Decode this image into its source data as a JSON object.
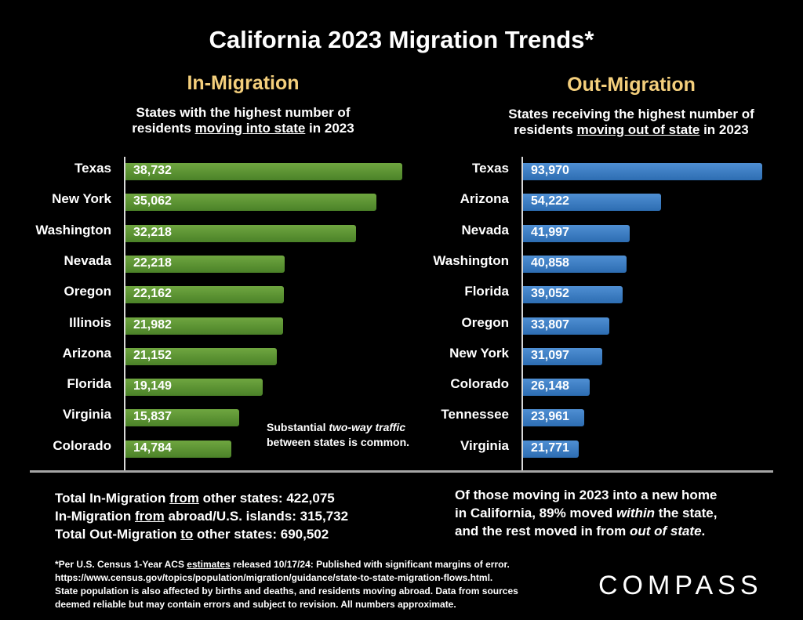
{
  "title": "California 2023 Migration Trends*",
  "in_panel": {
    "heading": "In-Migration",
    "subtitle_l1": "States with the highest number of",
    "subtitle_l2_pre": "residents ",
    "subtitle_l2_u": "moving into state",
    "subtitle_l2_post": " in 2023"
  },
  "out_panel": {
    "heading": "Out-Migration",
    "subtitle_l1": "States receiving the highest number of",
    "subtitle_l2_pre": "residents ",
    "subtitle_l2_u": "moving out of state",
    "subtitle_l2_post": " in 2023"
  },
  "chart_data": [
    {
      "type": "bar",
      "orientation": "horizontal",
      "title": "In-Migration",
      "color": "#5a9632",
      "xlim": [
        0,
        40000
      ],
      "categories": [
        "Texas",
        "New York",
        "Washington",
        "Nevada",
        "Oregon",
        "Illinois",
        "Arizona",
        "Florida",
        "Virginia",
        "Colorado"
      ],
      "values": [
        38732,
        35062,
        32218,
        22218,
        22162,
        21982,
        21152,
        19149,
        15837,
        14784
      ],
      "labels": [
        "38,732",
        "35,062",
        "32,218",
        "22,218",
        "22,162",
        "21,982",
        "21,152",
        "19,149",
        "15,837",
        "14,784"
      ]
    },
    {
      "type": "bar",
      "orientation": "horizontal",
      "title": "Out-Migration",
      "color": "#3a7cc4",
      "xlim": [
        0,
        95000
      ],
      "categories": [
        "Texas",
        "Arizona",
        "Nevada",
        "Washington",
        "Florida",
        "Oregon",
        "New York",
        "Colorado",
        "Tennessee",
        "Virginia"
      ],
      "values": [
        93970,
        54222,
        41997,
        40858,
        39052,
        33807,
        31097,
        26148,
        23961,
        21771
      ],
      "labels": [
        "93,970",
        "54,222",
        "41,997",
        "40,858",
        "39,052",
        "33,807",
        "31,097",
        "26,148",
        "23,961",
        "21,771"
      ]
    }
  ],
  "note": {
    "line1_pre": "Substantial ",
    "line1_em": "two-way traffic",
    "line2": "between states is common."
  },
  "totals": {
    "l1_pre": "Total In-Migration ",
    "l1_u": "from",
    "l1_post": " other states: 422,075",
    "l2_pre": "In-Migration ",
    "l2_u": "from",
    "l2_post": " abroad/U.S. islands: 315,732",
    "l3_pre": "Total Out-Migration ",
    "l3_u": "to",
    "l3_post": " other states: 690,502"
  },
  "summary": {
    "l1": "Of those moving in 2023 into a new home",
    "l2_pre": "in California, 89% moved ",
    "l2_em": "within",
    "l2_post": " the state,",
    "l3_pre": "and the rest moved in from ",
    "l3_em": "out of state",
    "l3_post": "."
  },
  "footnote": {
    "l1_pre": "*Per U.S. Census 1-Year ACS ",
    "l1_u": "estimates",
    "l1_post": " released 10/17/24: Published with significant margins of error.",
    "l2": "https://www.census.gov/topics/population/migration/guidance/state-to-state-migration-flows.html.",
    "l3": "State population is also affected by births and deaths, and residents moving abroad. Data from sources",
    "l4": "deemed reliable but may contain errors and subject to revision. All numbers approximate."
  },
  "logo": "COMPASS"
}
